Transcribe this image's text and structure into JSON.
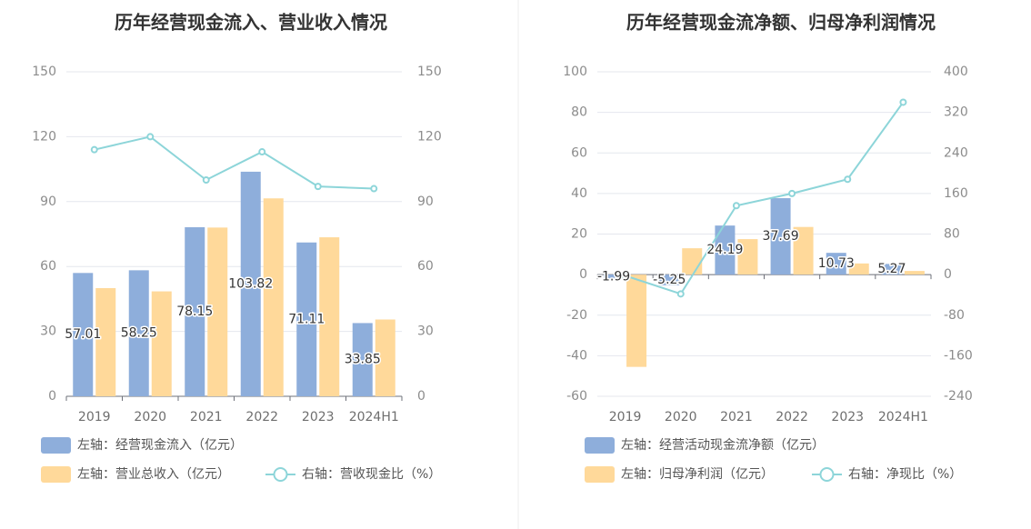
{
  "chart_data": [
    {
      "type": "bar",
      "title": "历年经营现金流入、营业收入情况",
      "categories": [
        "2019",
        "2020",
        "2021",
        "2022",
        "2023",
        "2024H1"
      ],
      "left_axis": {
        "ticks": [
          "0",
          "30",
          "60",
          "90",
          "120",
          "150"
        ],
        "ylim": [
          0,
          150
        ]
      },
      "right_axis": {
        "ticks": [
          "0",
          "30",
          "60",
          "90",
          "120",
          "150"
        ],
        "ylim": [
          0,
          150
        ]
      },
      "series": [
        {
          "name": "左轴：经营现金流入（亿元）",
          "type": "bar",
          "axis": "left",
          "color": "#8eaedb",
          "values": [
            57.01,
            58.25,
            78.15,
            103.82,
            71.11,
            33.85
          ],
          "labels": [
            "57.01",
            "58.25",
            "78.15",
            "103.82",
            "71.11",
            "33.85"
          ]
        },
        {
          "name": "左轴：营业总收入（亿元）",
          "type": "bar",
          "axis": "left",
          "color": "#ffd99a",
          "values": [
            50,
            48.5,
            78,
            91.5,
            73.5,
            35.5
          ]
        },
        {
          "name": "右轴：营收现金比（%）",
          "type": "line",
          "axis": "right",
          "color": "#8dd5d9",
          "values": [
            114,
            120,
            100,
            113,
            97,
            96
          ]
        }
      ],
      "legend_position": "bottom-left",
      "grid": true
    },
    {
      "type": "bar",
      "title": "历年经营现金流净额、归母净利润情况",
      "categories": [
        "2019",
        "2020",
        "2021",
        "2022",
        "2023",
        "2024H1"
      ],
      "left_axis": {
        "ticks": [
          "-60",
          "-40",
          "-20",
          "0",
          "20",
          "40",
          "60",
          "80",
          "100"
        ],
        "ylim": [
          -60,
          100
        ]
      },
      "right_axis": {
        "ticks": [
          "-240",
          "-160",
          "-80",
          "0",
          "80",
          "160",
          "240",
          "320",
          "400"
        ],
        "ylim": [
          -240,
          400
        ]
      },
      "series": [
        {
          "name": "左轴：经营活动现金流净额（亿元）",
          "type": "bar",
          "axis": "left",
          "color": "#8eaedb",
          "values": [
            -1.99,
            -5.25,
            24.19,
            37.69,
            10.73,
            5.27
          ],
          "labels": [
            "-1.99",
            "-5.25",
            "24.19",
            "37.69",
            "10.73",
            "5.27"
          ]
        },
        {
          "name": "左轴：归母净利润（亿元）",
          "type": "bar",
          "axis": "left",
          "color": "#ffd99a",
          "values": [
            -45.5,
            13,
            17.5,
            23.5,
            5.5,
            1.8
          ]
        },
        {
          "name": "右轴：净现比（%）",
          "type": "line",
          "axis": "right",
          "color": "#8dd5d9",
          "values": [
            -2,
            -38,
            136,
            160,
            188,
            340
          ]
        }
      ],
      "legend_position": "bottom-left",
      "grid": true
    }
  ]
}
